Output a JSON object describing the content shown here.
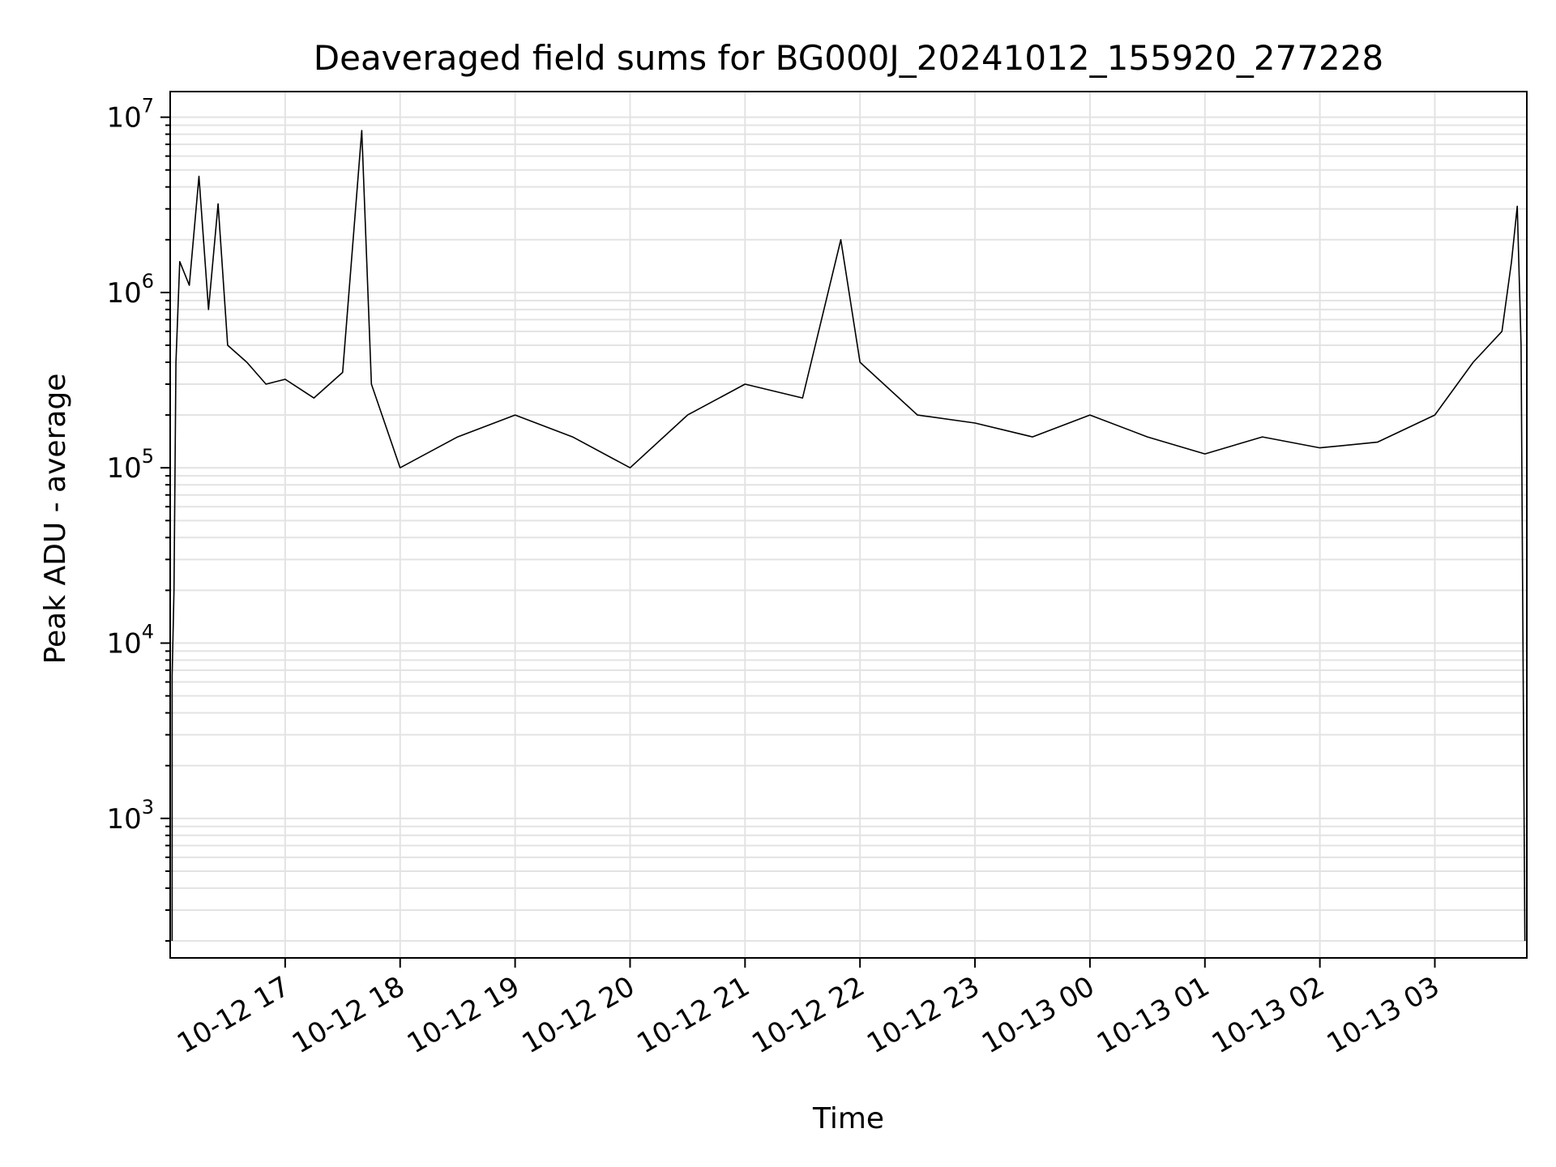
{
  "chart_data": {
    "type": "line",
    "title": "Deaveraged field sums for BG000J_20241012_155920_277228",
    "xlabel": "Time",
    "ylabel": "Peak ADU - average",
    "yscale": "log",
    "ylim": [
      160,
      14000000
    ],
    "xlim": [
      "2024-10-12 16:00",
      "2024-10-13 03:48"
    ],
    "grid": true,
    "x_ticks": [
      {
        "value": "2024-10-12 17:00",
        "label": "10-12 17"
      },
      {
        "value": "2024-10-12 18:00",
        "label": "10-12 18"
      },
      {
        "value": "2024-10-12 19:00",
        "label": "10-12 19"
      },
      {
        "value": "2024-10-12 20:00",
        "label": "10-12 20"
      },
      {
        "value": "2024-10-12 21:00",
        "label": "10-12 21"
      },
      {
        "value": "2024-10-12 22:00",
        "label": "10-12 22"
      },
      {
        "value": "2024-10-12 23:00",
        "label": "10-12 23"
      },
      {
        "value": "2024-10-13 00:00",
        "label": "10-13 00"
      },
      {
        "value": "2024-10-13 01:00",
        "label": "10-13 01"
      },
      {
        "value": "2024-10-13 02:00",
        "label": "10-13 02"
      },
      {
        "value": "2024-10-13 03:00",
        "label": "10-13 03"
      }
    ],
    "y_ticks": [
      {
        "value": 1000,
        "base": "10",
        "exp": "3"
      },
      {
        "value": 10000,
        "base": "10",
        "exp": "4"
      },
      {
        "value": 100000,
        "base": "10",
        "exp": "5"
      },
      {
        "value": 1000000,
        "base": "10",
        "exp": "6"
      },
      {
        "value": 10000000,
        "base": "10",
        "exp": "7"
      }
    ],
    "line_color": "#000000",
    "series": [
      {
        "x": [
          "2024-10-12 16:01",
          "2024-10-12 16:01",
          "2024-10-12 16:02",
          "2024-10-12 16:03",
          "2024-10-12 16:05",
          "2024-10-12 16:10",
          "2024-10-12 16:15",
          "2024-10-12 16:20",
          "2024-10-12 16:25",
          "2024-10-12 16:30",
          "2024-10-12 16:40",
          "2024-10-12 16:50",
          "2024-10-12 17:00",
          "2024-10-12 17:15",
          "2024-10-12 17:30",
          "2024-10-12 17:40",
          "2024-10-12 17:45",
          "2024-10-12 18:00",
          "2024-10-12 18:30",
          "2024-10-12 19:00",
          "2024-10-12 19:30",
          "2024-10-12 20:00",
          "2024-10-12 20:30",
          "2024-10-12 21:00",
          "2024-10-12 21:30",
          "2024-10-12 21:50",
          "2024-10-12 22:00",
          "2024-10-12 22:30",
          "2024-10-12 23:00",
          "2024-10-12 23:30",
          "2024-10-13 00:00",
          "2024-10-13 00:30",
          "2024-10-13 01:00",
          "2024-10-13 01:30",
          "2024-10-13 02:00",
          "2024-10-13 02:30",
          "2024-10-13 03:00",
          "2024-10-13 03:20",
          "2024-10-13 03:35",
          "2024-10-13 03:40",
          "2024-10-13 03:43",
          "2024-10-13 03:45",
          "2024-10-13 03:47"
        ],
        "y": [
          200,
          6500,
          20000,
          400000,
          1500000,
          1100000,
          4600000,
          800000,
          3200000,
          500000,
          400000,
          300000,
          320000,
          250000,
          350000,
          8400000,
          300000,
          100000,
          150000,
          200000,
          150000,
          100000,
          200000,
          300000,
          250000,
          2000000,
          400000,
          200000,
          180000,
          150000,
          200000,
          150000,
          120000,
          150000,
          130000,
          140000,
          200000,
          400000,
          600000,
          1500000,
          3100000,
          500000,
          200
        ]
      }
    ]
  }
}
